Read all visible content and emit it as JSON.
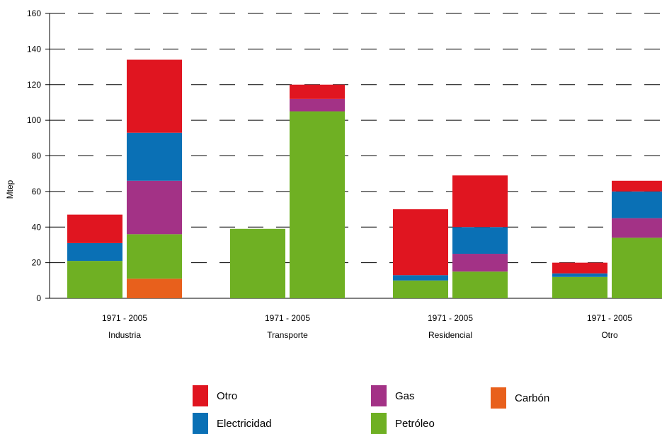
{
  "chart_data": {
    "type": "bar",
    "stacked": true,
    "ylabel": "Mtep",
    "xlabel": "",
    "ylim": [
      0,
      160
    ],
    "yticks": [
      0,
      20,
      40,
      60,
      80,
      100,
      120,
      140,
      160
    ],
    "grid": "horizontal dashed",
    "legend_position": "bottom",
    "categories": [
      "Industria",
      "Transporte",
      "Residencial",
      "Otro"
    ],
    "bar_labels": [
      "1971",
      "2005"
    ],
    "category_sublabel": "1971 - 2005",
    "series": [
      {
        "name": "Carbón",
        "color": "#e8601c",
        "values": [
          [
            0,
            11
          ],
          [
            0,
            0
          ],
          [
            0,
            0
          ],
          [
            0,
            0
          ]
        ]
      },
      {
        "name": "Petróleo",
        "color": "#6fb023",
        "values": [
          [
            21,
            25
          ],
          [
            39,
            105
          ],
          [
            10,
            15
          ],
          [
            12,
            34
          ]
        ]
      },
      {
        "name": "Gas",
        "color": "#a33286",
        "values": [
          [
            0,
            30
          ],
          [
            0,
            7
          ],
          [
            0,
            10
          ],
          [
            0,
            11
          ]
        ]
      },
      {
        "name": "Electricidad",
        "color": "#0a70b5",
        "values": [
          [
            10,
            27
          ],
          [
            0,
            0
          ],
          [
            3,
            15
          ],
          [
            2,
            15
          ]
        ]
      },
      {
        "name": "Otro",
        "color": "#e01520",
        "values": [
          [
            16,
            41
          ],
          [
            0,
            8
          ],
          [
            37,
            29
          ],
          [
            6,
            6
          ]
        ]
      }
    ]
  },
  "legend": [
    {
      "label": "Otro",
      "color": "#e01520"
    },
    {
      "label": "Gas",
      "color": "#a33286"
    },
    {
      "label": "Carbón",
      "color": "#e8601c"
    },
    {
      "label": "Electricidad",
      "color": "#0a70b5"
    },
    {
      "label": "Petróleo",
      "color": "#6fb023"
    }
  ]
}
